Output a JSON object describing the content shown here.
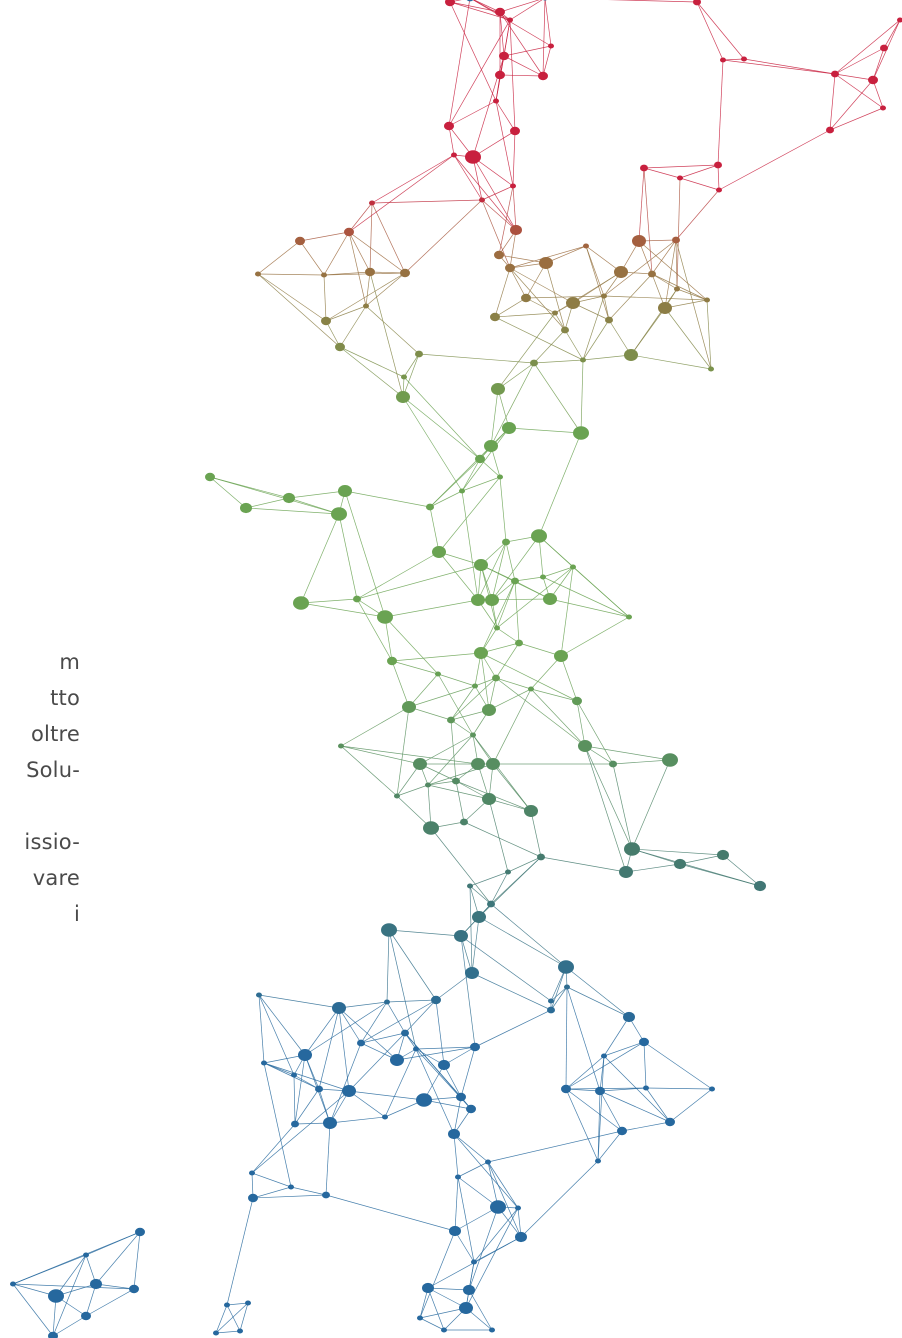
{
  "text_fragment": {
    "lines": [
      "m",
      "tto",
      "oltre",
      "Solu-",
      "",
      "issio-",
      "vare",
      "i"
    ]
  },
  "network_graphic": {
    "colors": {
      "top": "#c8203e",
      "upper_mid": "#9e6a3f",
      "mid": "#6aa352",
      "lower_mid": "#457a6e",
      "bottom": "#26689e"
    }
  }
}
